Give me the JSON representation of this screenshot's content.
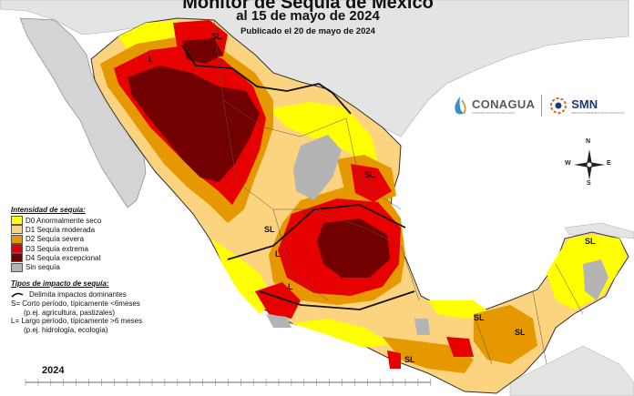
{
  "title": "Monitor de Sequía de México",
  "date_line": "al 15 de mayo de 2024",
  "published_line": "Publicado el 20 de mayo de 2024",
  "legend": {
    "header": "Intensidad de sequía:",
    "items": [
      {
        "label": "D0 Anormalmente seco",
        "color": "#ffff00"
      },
      {
        "label": "D1 Sequía moderada",
        "color": "#fcd37f"
      },
      {
        "label": "D2 Sequía severa",
        "color": "#e69800"
      },
      {
        "label": "D3 Sequía extrema",
        "color": "#e60000"
      },
      {
        "label": "D4 Sequía excepcional",
        "color": "#730000"
      },
      {
        "label": "Sin sequía",
        "color": "#b4b4b4"
      }
    ]
  },
  "impacts": {
    "header": "Tipos de impacto de sequía:",
    "line_label": "Delimita impactos dominantes",
    "short": "S= Corto período, típicamente <6meses",
    "short_ex": "(p.ej. agricultura, pastizales)",
    "long": "L= Largo período, típicamente >6 meses",
    "long_ex": "(p.ej. hidrología, ecología)"
  },
  "logos": {
    "conagua": "CONAGUA",
    "conagua_sub": "COMISIÓN NACIONAL DEL AGUA",
    "smn": "SMN",
    "smn_sub": "SERVICIO METEOROLÓGICO NACIONAL"
  },
  "compass": {
    "n": "N",
    "s": "S",
    "e": "E",
    "w": "W"
  },
  "map_labels": [
    "SL",
    "SL",
    "SL",
    "SL",
    "SL",
    "SL",
    "SL",
    "L",
    "L",
    "L"
  ],
  "timeline": {
    "year": "2024"
  },
  "colors": {
    "background": "#ffffff",
    "land_neighbor": "#d9d9d9",
    "boundary": "#333333"
  }
}
